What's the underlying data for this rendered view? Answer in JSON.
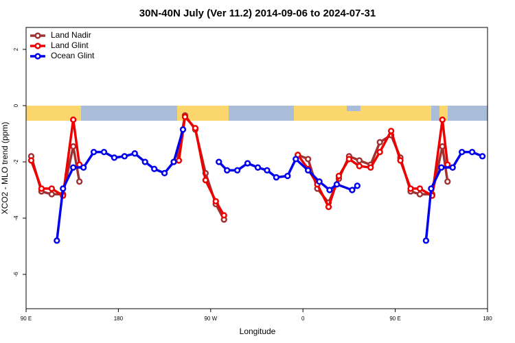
{
  "chart_data": {
    "type": "line",
    "title": "30N-40N July (Ver 11.2)   2014-09-06 to 2024-07-31",
    "xlabel": "Longitude",
    "ylabel": "XCO2 - MLO trend (ppm)",
    "xlim": [
      90,
      540
    ],
    "ylim": [
      -7.22,
      2.78
    ],
    "xticks": [
      {
        "value": 90,
        "label": "90 E"
      },
      {
        "value": 180,
        "label": "180"
      },
      {
        "value": 270,
        "label": "90 W"
      },
      {
        "value": 360,
        "label": "0"
      },
      {
        "value": 450,
        "label": "90 E"
      },
      {
        "value": 540,
        "label": "180"
      }
    ],
    "yticks": [
      2,
      0,
      -2,
      -4,
      -6
    ],
    "legend": "top-left",
    "series": [
      {
        "name": "Land Nadir",
        "color": "#a03232",
        "x": [
          95,
          105,
          115,
          126,
          136,
          142,
          null,
          237,
          245,
          255,
          265,
          275,
          283,
          null,
          355,
          365,
          374,
          385,
          395,
          405,
          415,
          426,
          435,
          446,
          455,
          465,
          474,
          486,
          496,
          501
        ],
        "values": [
          -1.8,
          -3.05,
          -3.15,
          -3.15,
          -1.45,
          -2.7,
          null,
          -1.9,
          -0.35,
          -0.85,
          -2.4,
          -3.5,
          -4.05,
          null,
          -1.75,
          -1.9,
          -2.95,
          -3.45,
          -2.6,
          -1.8,
          -1.95,
          -2.1,
          -1.3,
          -1.05,
          -1.85,
          -3.05,
          -3.15,
          -3.15,
          -1.45,
          -2.7
        ]
      },
      {
        "name": "Land Glint",
        "color": "#ee0000",
        "x": [
          95,
          105,
          115,
          126,
          136,
          142,
          null,
          239,
          245,
          255,
          265,
          275,
          283,
          null,
          355,
          365,
          374,
          385,
          395,
          405,
          415,
          426,
          435,
          446,
          455,
          465,
          474,
          486,
          496,
          501
        ],
        "values": [
          -1.95,
          -2.95,
          -2.95,
          -3.2,
          -0.5,
          -2.1,
          null,
          -1.95,
          -0.4,
          -0.8,
          -2.65,
          -3.4,
          -3.9,
          null,
          -1.75,
          -2.25,
          -2.8,
          -3.6,
          -2.5,
          -1.9,
          -2.15,
          -2.2,
          -1.65,
          -0.9,
          -1.95,
          -2.95,
          -2.95,
          -3.2,
          -0.5,
          -2.1
        ]
      },
      {
        "name": "Ocean Glint",
        "color": "#0000ee",
        "x": [
          120,
          126,
          136,
          146,
          156,
          166,
          176,
          186,
          196,
          206,
          215,
          225,
          234,
          243,
          null,
          278,
          286,
          296,
          306,
          316,
          325,
          334,
          345,
          353,
          365,
          376,
          386,
          393,
          408,
          413,
          null,
          480,
          485,
          495,
          506,
          515,
          525,
          535
        ],
        "values": [
          -4.8,
          -2.95,
          -2.2,
          -2.2,
          -1.65,
          -1.65,
          -1.85,
          -1.8,
          -1.7,
          -2.0,
          -2.25,
          -2.4,
          -2.0,
          -0.85,
          null,
          -2.0,
          -2.3,
          -2.3,
          -2.05,
          -2.2,
          -2.3,
          -2.55,
          -2.5,
          -1.9,
          -2.3,
          -2.7,
          -3.0,
          -2.8,
          -3.0,
          -2.85,
          null,
          -4.8,
          -2.95,
          -2.2,
          -2.2,
          -1.65,
          -1.65,
          -1.8
        ]
      }
    ]
  }
}
